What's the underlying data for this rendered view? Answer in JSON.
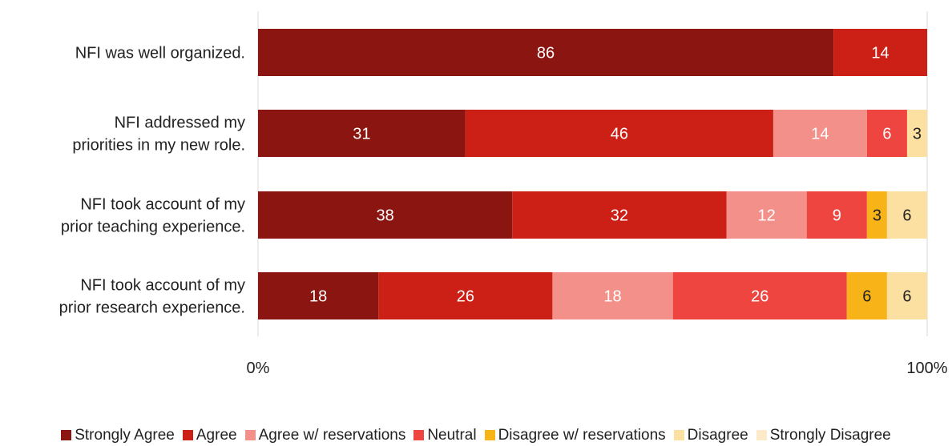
{
  "chart_data": {
    "type": "bar",
    "orientation": "horizontal",
    "stacked": "percent",
    "categories": [
      [
        "NFI was well organized."
      ],
      [
        "NFI addressed  my",
        "priorities in my new role."
      ],
      [
        "NFI took account of my",
        "prior teaching experience."
      ],
      [
        "NFI took account of my",
        "prior research experience."
      ]
    ],
    "series": [
      {
        "name": "Strongly Agree",
        "color": "#8B1510",
        "label_color": "#ffffff",
        "values": [
          86,
          31,
          38,
          18
        ]
      },
      {
        "name": "Agree",
        "color": "#CC2016",
        "label_color": "#ffffff",
        "values": [
          14,
          46,
          32,
          26
        ]
      },
      {
        "name": "Agree w/ reservations",
        "color": "#F4908A",
        "label_color": "#ffffff",
        "values": [
          0,
          14,
          12,
          18
        ]
      },
      {
        "name": "Neutral",
        "color": "#EE4540",
        "label_color": "#ffffff",
        "values": [
          0,
          6,
          9,
          26
        ]
      },
      {
        "name": "Disagree w/ reservations",
        "color": "#F7B318",
        "label_color": "#222222",
        "values": [
          0,
          0,
          3,
          6
        ]
      },
      {
        "name": "Disagree",
        "color": "#FBE0A2",
        "label_color": "#222222",
        "values": [
          0,
          3,
          6,
          6
        ]
      },
      {
        "name": "Strongly Disagree",
        "color": "#FDEAC8",
        "label_color": "#222222",
        "values": [
          0,
          0,
          0,
          0
        ]
      }
    ],
    "x_ticks": [
      "0%",
      "100%"
    ],
    "xlim": [
      0,
      100
    ],
    "grid": false,
    "legend_position": "bottom"
  }
}
